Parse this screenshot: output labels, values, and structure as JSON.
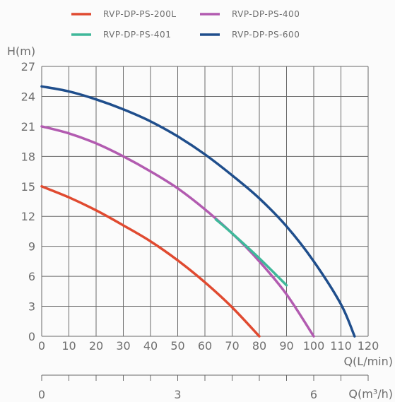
{
  "chart_data": {
    "type": "line",
    "title": "",
    "ylabel": "H(m)",
    "xlabel": "Q(L/min)",
    "x2label": "Q(m³/h)",
    "ylim": [
      0,
      27
    ],
    "xlim": [
      0,
      120
    ],
    "x2lim": [
      0,
      7.2
    ],
    "yticks": [
      "0",
      "3",
      "6",
      "9",
      "12",
      "15",
      "18",
      "21",
      "24",
      "27"
    ],
    "xticks": [
      "0",
      "10",
      "20",
      "30",
      "40",
      "50",
      "60",
      "70",
      "80",
      "90",
      "100",
      "110",
      "120"
    ],
    "x2ticks": [
      "0",
      "3",
      "6"
    ],
    "grid": true,
    "legend_position": "top",
    "series": [
      {
        "name": "RVP-DP-PS-200L",
        "color": "#e04a30",
        "x": [
          0,
          10,
          20,
          30,
          40,
          50,
          60,
          70,
          80
        ],
        "y": [
          15,
          13.9,
          12.6,
          11.1,
          9.5,
          7.6,
          5.4,
          2.9,
          0
        ]
      },
      {
        "name": "RVP-DP-PS-400",
        "color": "#b25bb0",
        "x": [
          0,
          10,
          20,
          30,
          40,
          50,
          60,
          70,
          80,
          90,
          100
        ],
        "y": [
          21,
          20.3,
          19.3,
          18.0,
          16.5,
          14.8,
          12.7,
          10.3,
          7.5,
          4.2,
          0
        ]
      },
      {
        "name": "RVP-DP-PS-401",
        "color": "#3fb89a",
        "x": [
          64,
          70,
          80,
          90
        ],
        "y": [
          11.7,
          10.3,
          7.8,
          5.1
        ]
      },
      {
        "name": "RVP-DP-PS-600",
        "color": "#1f4e8c",
        "x": [
          0,
          10,
          20,
          30,
          40,
          50,
          60,
          70,
          80,
          90,
          100,
          110,
          115
        ],
        "y": [
          25,
          24.5,
          23.7,
          22.7,
          21.5,
          20.0,
          18.2,
          16.1,
          13.8,
          11.0,
          7.5,
          3.2,
          0
        ]
      }
    ]
  }
}
